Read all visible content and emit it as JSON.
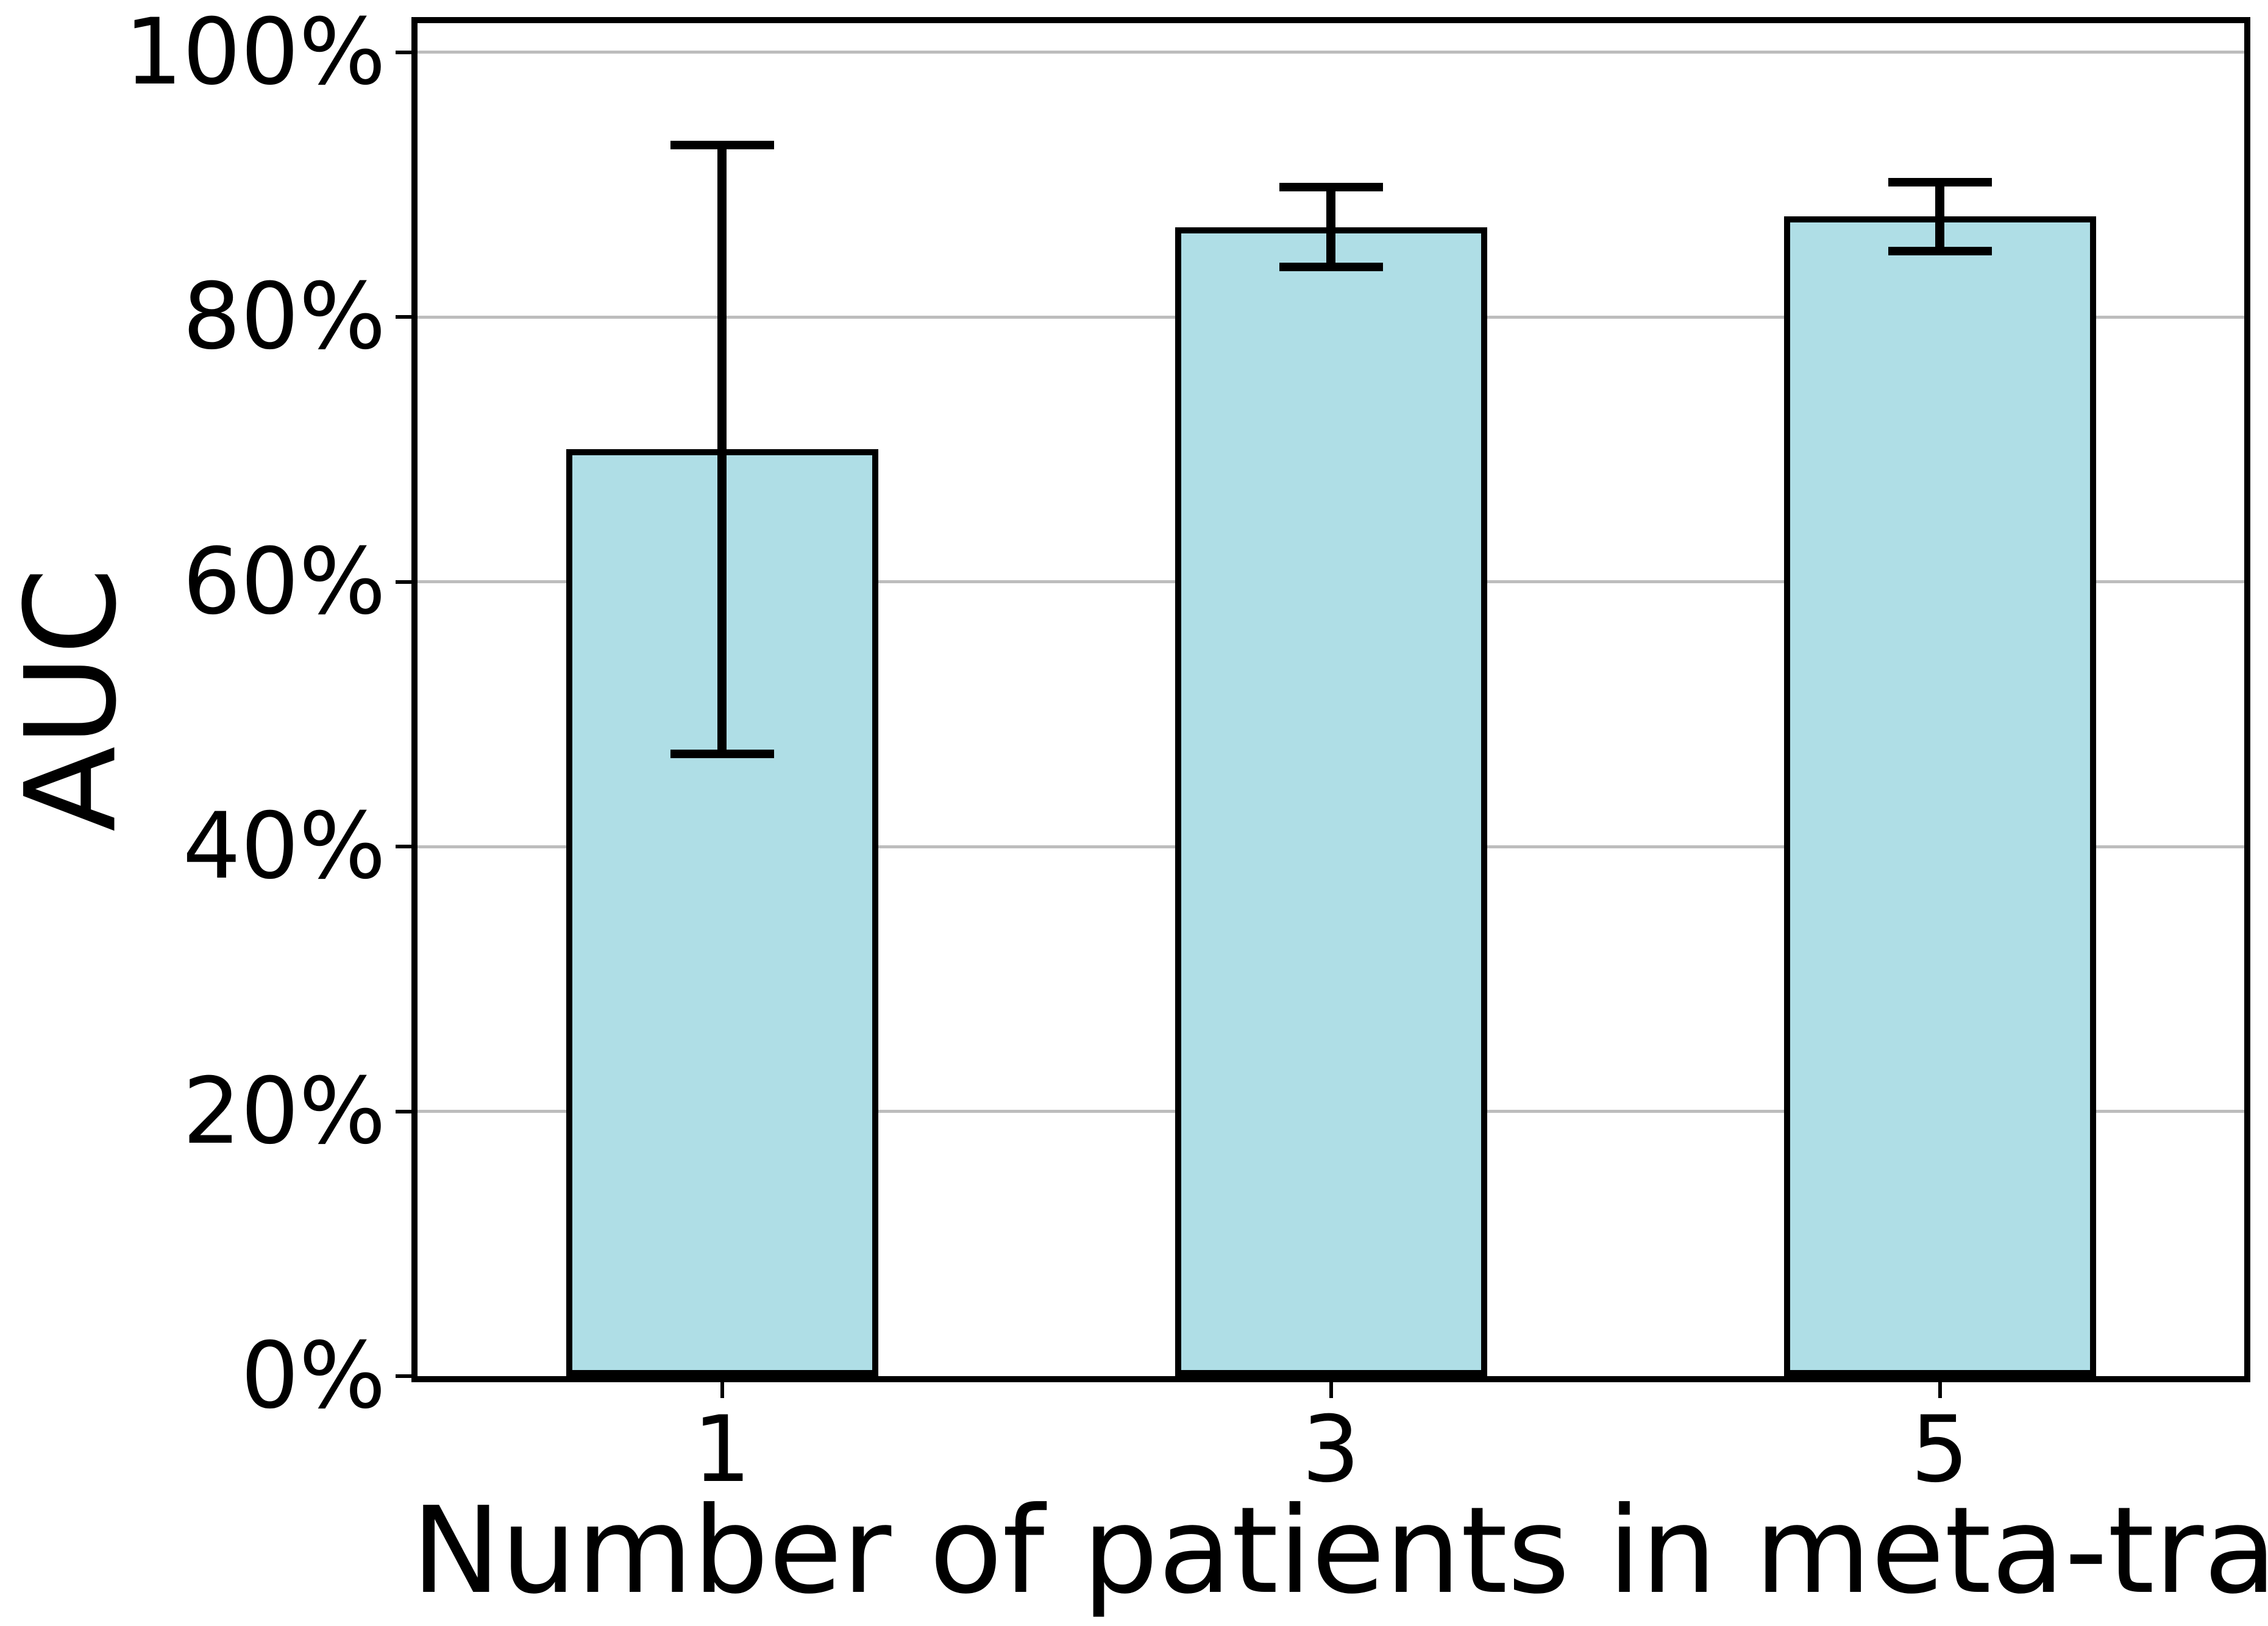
{
  "chart_data": {
    "type": "bar",
    "title": "",
    "xlabel": "Number of patients in meta-train",
    "ylabel": "AUC",
    "categories": [
      "1",
      "3",
      "5"
    ],
    "series": [
      {
        "name": "AUC",
        "values": [
          70.0,
          86.8,
          87.6
        ],
        "error_plus": [
          23.4,
          3.0,
          2.6
        ],
        "error_minus": [
          22.9,
          3.0,
          2.6
        ]
      }
    ],
    "values": [
      70.0,
      86.8,
      87.6
    ],
    "errors": [
      23.0,
      3.0,
      2.6
    ],
    "yticks": [
      0,
      20,
      40,
      60,
      80,
      100
    ],
    "ytick_labels": [
      "0%",
      "20%",
      "40%",
      "60%",
      "80%",
      "100%"
    ],
    "ylim": [
      0,
      102.2
    ],
    "grid": "horizontal-only",
    "legend": "none",
    "bar_color": "#AFDEE6",
    "bar_edge_color": "#000000",
    "error_color": "#000000",
    "grid_color": "#BDBDBD",
    "spine_color": "#000000",
    "background_color": "#FFFFFF"
  }
}
